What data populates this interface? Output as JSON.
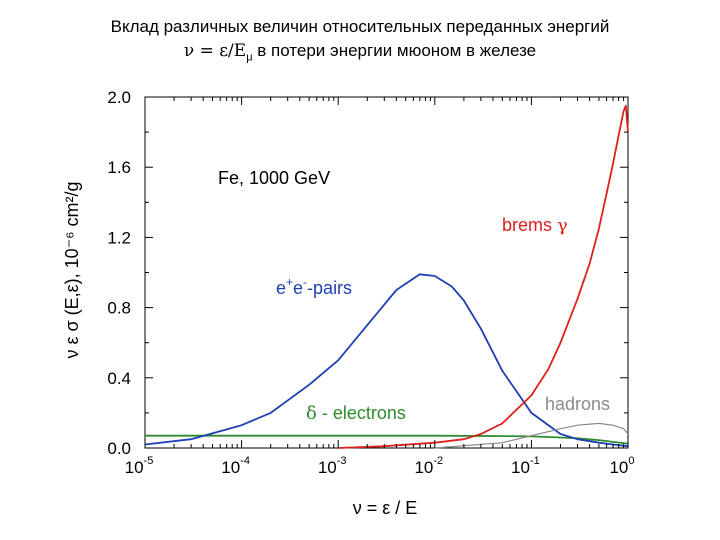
{
  "title_line1": "Вклад различных величин относительных переданных энергий",
  "title_line2_prefix": "ν = ε/E",
  "title_line2_sub": "μ",
  "title_line2_suffix": " в потери энергии мюоном в железе",
  "colors": {
    "electrons": "#2e8b2e",
    "pairs": "#1f3fb5",
    "brems": "#e0201a",
    "hadrons": "#8a8a8a",
    "frame": "#000000"
  },
  "chart_data": {
    "type": "line",
    "x_scale": "log",
    "xlim": [
      1e-05,
      1
    ],
    "ylim": [
      0,
      2.0
    ],
    "xlabel": "ν = ε / E",
    "ylabel": "ν ε σ (E,ε), 10⁻⁶ cm²/g",
    "x_tick_labels": [
      {
        "base": "10",
        "exp": "-5",
        "value": 1e-05
      },
      {
        "base": "10",
        "exp": "-4",
        "value": 0.0001
      },
      {
        "base": "10",
        "exp": "-3",
        "value": 0.001
      },
      {
        "base": "10",
        "exp": "-2",
        "value": 0.01
      },
      {
        "base": "10",
        "exp": "-1",
        "value": 0.1
      },
      {
        "base": "10",
        "exp": "0",
        "value": 1
      }
    ],
    "y_tick_labels": [
      "0.0",
      "0.4",
      "0.8",
      "1.2",
      "1.6",
      "2.0"
    ],
    "y_ticks": [
      0,
      0.4,
      0.8,
      1.2,
      1.6,
      2.0
    ],
    "grid": false,
    "annotation": "Fe, 1000 GeV",
    "series": [
      {
        "key": "electrons",
        "name": "δ - electrons",
        "x": [
          1e-05,
          0.0001,
          0.001,
          0.01,
          0.05,
          0.1,
          0.2,
          0.3,
          0.5,
          0.7,
          0.9,
          1.0
        ],
        "y": [
          0.07,
          0.07,
          0.07,
          0.07,
          0.068,
          0.066,
          0.06,
          0.055,
          0.045,
          0.035,
          0.028,
          0.025
        ]
      },
      {
        "key": "pairs",
        "name": "e⁺e⁻-pairs",
        "x": [
          1e-05,
          3e-05,
          0.0001,
          0.0002,
          0.0005,
          0.001,
          0.002,
          0.004,
          0.007,
          0.01,
          0.015,
          0.02,
          0.03,
          0.05,
          0.1,
          0.2,
          0.3,
          0.5,
          0.7,
          1.0
        ],
        "y": [
          0.02,
          0.05,
          0.13,
          0.2,
          0.36,
          0.5,
          0.7,
          0.9,
          0.99,
          0.98,
          0.92,
          0.84,
          0.68,
          0.44,
          0.2,
          0.08,
          0.05,
          0.03,
          0.02,
          0.01
        ]
      },
      {
        "key": "brems",
        "name": "brems γ",
        "x": [
          0.001,
          0.003,
          0.01,
          0.02,
          0.03,
          0.05,
          0.1,
          0.15,
          0.2,
          0.3,
          0.4,
          0.5,
          0.6,
          0.7,
          0.8,
          0.9,
          0.95,
          1.0
        ],
        "y": [
          0.0,
          0.01,
          0.03,
          0.05,
          0.08,
          0.14,
          0.3,
          0.45,
          0.6,
          0.85,
          1.05,
          1.25,
          1.45,
          1.62,
          1.78,
          1.92,
          1.95,
          1.8
        ]
      },
      {
        "key": "hadrons",
        "name": "hadrons",
        "x": [
          0.01,
          0.05,
          0.1,
          0.2,
          0.3,
          0.5,
          0.7,
          0.9,
          1.0
        ],
        "y": [
          0.0,
          0.03,
          0.07,
          0.11,
          0.13,
          0.14,
          0.13,
          0.11,
          0.08
        ]
      }
    ],
    "labels": {
      "pairs_base": "e",
      "pairs_sup1": "+",
      "pairs_mid": "e",
      "pairs_sup2": "-",
      "pairs_tail": "-pairs",
      "brems_text": "brems ",
      "brems_sym": "γ",
      "electrons_sym": "δ",
      "electrons_text": " - electrons",
      "hadrons_text": "hadrons"
    }
  }
}
